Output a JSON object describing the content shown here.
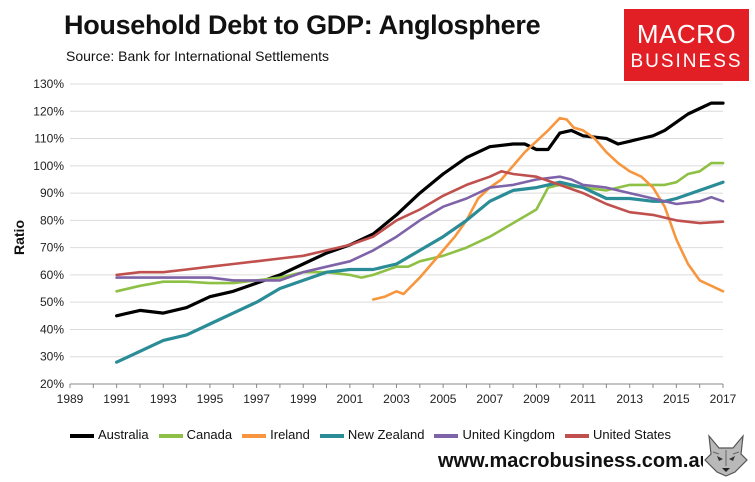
{
  "header": {
    "title": "Household Debt to GDP: Anglosphere",
    "subtitle": "Source: Bank for International Settlements"
  },
  "logo": {
    "line1": "MACRO",
    "line2": "BUSINESS",
    "color": "#e31f26"
  },
  "footer": {
    "website": "www.macrobusiness.com.au",
    "emblem_icon": "fox-head-icon"
  },
  "chart_data": {
    "type": "line",
    "title": "Household Debt to GDP: Anglosphere",
    "xlabel": "",
    "ylabel": "Ratio",
    "xlim": [
      1989,
      2017
    ],
    "ylim": [
      20,
      130
    ],
    "x_ticks": [
      "1989",
      "1991",
      "1993",
      "1995",
      "1997",
      "1999",
      "2001",
      "2003",
      "2005",
      "2007",
      "2009",
      "2011",
      "2013",
      "2015",
      "2017"
    ],
    "y_ticks": [
      "20%",
      "30%",
      "40%",
      "50%",
      "60%",
      "70%",
      "80%",
      "90%",
      "100%",
      "110%",
      "120%",
      "130%"
    ],
    "y_tick_values": [
      20,
      30,
      40,
      50,
      60,
      70,
      80,
      90,
      100,
      110,
      120,
      130
    ],
    "grid": "horizontal",
    "legend_position": "bottom",
    "series": [
      {
        "name": "Australia",
        "color": "#000000",
        "points": [
          [
            1991,
            45
          ],
          [
            1992,
            47
          ],
          [
            1993,
            46
          ],
          [
            1994,
            48
          ],
          [
            1995,
            52
          ],
          [
            1996,
            54
          ],
          [
            1997,
            57
          ],
          [
            1998,
            60
          ],
          [
            1999,
            64
          ],
          [
            2000,
            68
          ],
          [
            2001,
            71
          ],
          [
            2002,
            75
          ],
          [
            2003,
            82
          ],
          [
            2004,
            90
          ],
          [
            2005,
            97
          ],
          [
            2006,
            103
          ],
          [
            2007,
            107
          ],
          [
            2008,
            108
          ],
          [
            2008.5,
            108
          ],
          [
            2009,
            106
          ],
          [
            2009.5,
            106
          ],
          [
            2010,
            112
          ],
          [
            2010.5,
            113
          ],
          [
            2011,
            111
          ],
          [
            2012,
            110
          ],
          [
            2012.5,
            108
          ],
          [
            2013,
            109
          ],
          [
            2013.5,
            110
          ],
          [
            2014,
            111
          ],
          [
            2014.5,
            113
          ],
          [
            2015,
            116
          ],
          [
            2015.5,
            119
          ],
          [
            2016,
            121
          ],
          [
            2016.5,
            123
          ],
          [
            2017,
            123
          ]
        ]
      },
      {
        "name": "Canada",
        "color": "#8dc044",
        "points": [
          [
            1991,
            54
          ],
          [
            1992,
            56
          ],
          [
            1993,
            57.5
          ],
          [
            1994,
            57.5
          ],
          [
            1995,
            57
          ],
          [
            1996,
            57
          ],
          [
            1997,
            58
          ],
          [
            1998,
            59
          ],
          [
            1999,
            61
          ],
          [
            2000,
            61
          ],
          [
            2001,
            60
          ],
          [
            2001.5,
            59
          ],
          [
            2002,
            60
          ],
          [
            2003,
            63
          ],
          [
            2003.5,
            63
          ],
          [
            2004,
            65
          ],
          [
            2005,
            67
          ],
          [
            2006,
            70
          ],
          [
            2007,
            74
          ],
          [
            2008,
            79
          ],
          [
            2009,
            84
          ],
          [
            2009.5,
            92
          ],
          [
            2010,
            93
          ],
          [
            2011,
            92
          ],
          [
            2012,
            91
          ],
          [
            2013,
            93
          ],
          [
            2014,
            93
          ],
          [
            2014.5,
            93
          ],
          [
            2015,
            94
          ],
          [
            2015.5,
            97
          ],
          [
            2016,
            98
          ],
          [
            2016.5,
            101
          ],
          [
            2017,
            101
          ]
        ]
      },
      {
        "name": "Ireland",
        "color": "#f7963e",
        "points": [
          [
            2002,
            51
          ],
          [
            2002.5,
            52
          ],
          [
            2003,
            54
          ],
          [
            2003.3,
            53
          ],
          [
            2004,
            59
          ],
          [
            2004.5,
            64
          ],
          [
            2005,
            69
          ],
          [
            2005.5,
            74
          ],
          [
            2006,
            80
          ],
          [
            2006.5,
            88
          ],
          [
            2007,
            92
          ],
          [
            2007.5,
            95
          ],
          [
            2008,
            100
          ],
          [
            2008.5,
            105
          ],
          [
            2009,
            109
          ],
          [
            2009.5,
            113
          ],
          [
            2010,
            117.5
          ],
          [
            2010.3,
            117
          ],
          [
            2010.6,
            114
          ],
          [
            2011,
            113
          ],
          [
            2011.5,
            110
          ],
          [
            2012,
            105
          ],
          [
            2012.5,
            101
          ],
          [
            2013,
            98
          ],
          [
            2013.5,
            96
          ],
          [
            2014,
            92
          ],
          [
            2014.5,
            85
          ],
          [
            2015,
            73
          ],
          [
            2015.5,
            64
          ],
          [
            2016,
            58
          ],
          [
            2016.5,
            56
          ],
          [
            2017,
            54
          ]
        ]
      },
      {
        "name": "New Zealand",
        "color": "#2a8c97",
        "points": [
          [
            1991,
            28
          ],
          [
            1992,
            32
          ],
          [
            1993,
            36
          ],
          [
            1994,
            38
          ],
          [
            1995,
            42
          ],
          [
            1996,
            46
          ],
          [
            1997,
            50
          ],
          [
            1998,
            55
          ],
          [
            1999,
            58
          ],
          [
            2000,
            61
          ],
          [
            2001,
            62
          ],
          [
            2002,
            62
          ],
          [
            2003,
            64
          ],
          [
            2004,
            69
          ],
          [
            2005,
            74
          ],
          [
            2006,
            80
          ],
          [
            2007,
            87
          ],
          [
            2008,
            91
          ],
          [
            2009,
            92
          ],
          [
            2009.5,
            93
          ],
          [
            2010,
            94
          ],
          [
            2011,
            92
          ],
          [
            2012,
            88
          ],
          [
            2013,
            88
          ],
          [
            2014,
            87
          ],
          [
            2014.5,
            87
          ],
          [
            2015,
            88
          ],
          [
            2016,
            91
          ],
          [
            2017,
            94
          ]
        ]
      },
      {
        "name": "United Kingdom",
        "color": "#7f63a8",
        "points": [
          [
            1991,
            59
          ],
          [
            1992,
            59
          ],
          [
            1993,
            59
          ],
          [
            1994,
            59
          ],
          [
            1995,
            59
          ],
          [
            1996,
            58
          ],
          [
            1997,
            58
          ],
          [
            1998,
            58
          ],
          [
            1999,
            61
          ],
          [
            2000,
            63
          ],
          [
            2001,
            65
          ],
          [
            2002,
            69
          ],
          [
            2003,
            74
          ],
          [
            2004,
            80
          ],
          [
            2005,
            85
          ],
          [
            2006,
            88
          ],
          [
            2007,
            92
          ],
          [
            2008,
            93
          ],
          [
            2009,
            95
          ],
          [
            2010,
            96
          ],
          [
            2010.5,
            95
          ],
          [
            2011,
            93
          ],
          [
            2012,
            92
          ],
          [
            2013,
            90
          ],
          [
            2014,
            88
          ],
          [
            2015,
            86
          ],
          [
            2016,
            87
          ],
          [
            2016.5,
            88.5
          ],
          [
            2017,
            87
          ]
        ]
      },
      {
        "name": "United States",
        "color": "#c0504d",
        "points": [
          [
            1991,
            60
          ],
          [
            1992,
            61
          ],
          [
            1993,
            61
          ],
          [
            1994,
            62
          ],
          [
            1995,
            63
          ],
          [
            1996,
            64
          ],
          [
            1997,
            65
          ],
          [
            1998,
            66
          ],
          [
            1999,
            67
          ],
          [
            2000,
            69
          ],
          [
            2001,
            71
          ],
          [
            2002,
            74
          ],
          [
            2003,
            80
          ],
          [
            2004,
            84
          ],
          [
            2005,
            89
          ],
          [
            2006,
            93
          ],
          [
            2007,
            96
          ],
          [
            2007.5,
            98
          ],
          [
            2008,
            97
          ],
          [
            2009,
            96
          ],
          [
            2010,
            93
          ],
          [
            2011,
            90
          ],
          [
            2012,
            86
          ],
          [
            2013,
            83
          ],
          [
            2014,
            82
          ],
          [
            2015,
            80
          ],
          [
            2016,
            79
          ],
          [
            2017,
            79.5
          ]
        ]
      }
    ]
  }
}
